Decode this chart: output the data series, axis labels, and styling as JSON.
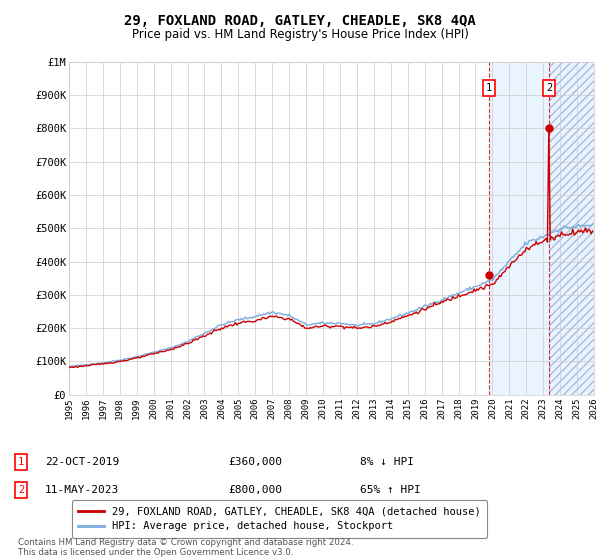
{
  "title": "29, FOXLAND ROAD, GATLEY, CHEADLE, SK8 4QA",
  "subtitle": "Price paid vs. HM Land Registry's House Price Index (HPI)",
  "xlim": [
    1995,
    2026
  ],
  "ylim": [
    0,
    1000000
  ],
  "yticks": [
    0,
    100000,
    200000,
    300000,
    400000,
    500000,
    600000,
    700000,
    800000,
    900000,
    1000000
  ],
  "ytick_labels": [
    "£0",
    "£100K",
    "£200K",
    "£300K",
    "£400K",
    "£500K",
    "£600K",
    "£700K",
    "£800K",
    "£900K",
    "£1M"
  ],
  "xticks": [
    1995,
    1996,
    1997,
    1998,
    1999,
    2000,
    2001,
    2002,
    2003,
    2004,
    2005,
    2006,
    2007,
    2008,
    2009,
    2010,
    2011,
    2012,
    2013,
    2014,
    2015,
    2016,
    2017,
    2018,
    2019,
    2020,
    2021,
    2022,
    2023,
    2024,
    2025,
    2026
  ],
  "hpi_color": "#7aabdc",
  "price_color": "#cc0000",
  "grid_color": "#cccccc",
  "background_color": "#ffffff",
  "transaction1_date": "22-OCT-2019",
  "transaction1_price": 360000,
  "transaction1_pct": "8%",
  "transaction1_dir": "↓",
  "transaction2_date": "11-MAY-2023",
  "transaction2_price": 800000,
  "transaction2_pct": "65%",
  "transaction2_dir": "↑",
  "transaction1_x": 2019.8,
  "transaction2_x": 2023.35,
  "shade_color": "#ddeeff",
  "legend_label1": "29, FOXLAND ROAD, GATLEY, CHEADLE, SK8 4QA (detached house)",
  "legend_label2": "HPI: Average price, detached house, Stockport",
  "footer": "Contains HM Land Registry data © Crown copyright and database right 2024.\nThis data is licensed under the Open Government Licence v3.0."
}
